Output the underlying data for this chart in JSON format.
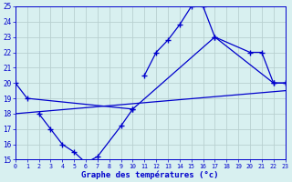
{
  "xlabel": "Graphe des températures (°c)",
  "bg_color": "#d8f0f0",
  "line_color": "#0000cc",
  "grid_color": "#b8d0d0",
  "xlim": [
    0,
    23
  ],
  "ylim": [
    15,
    25
  ],
  "yticks": [
    15,
    16,
    17,
    18,
    19,
    20,
    21,
    22,
    23,
    24,
    25
  ],
  "xticks": [
    0,
    1,
    2,
    3,
    4,
    5,
    6,
    7,
    8,
    9,
    10,
    11,
    12,
    13,
    14,
    15,
    16,
    17,
    18,
    19,
    20,
    21,
    22,
    23
  ],
  "line1": {
    "x": [
      0,
      1,
      10,
      17,
      22,
      23
    ],
    "y": [
      20.0,
      19.0,
      18.3,
      23.0,
      20.0,
      20.0
    ]
  },
  "line2": {
    "x": [
      2,
      3,
      4,
      5,
      6,
      7,
      9,
      10
    ],
    "y": [
      18.0,
      17.0,
      16.0,
      15.5,
      14.8,
      15.2,
      17.2,
      18.3
    ]
  },
  "line3": {
    "x": [
      11,
      12,
      13,
      14,
      15,
      16,
      17,
      20,
      21,
      22,
      23
    ],
    "y": [
      20.5,
      22.0,
      22.8,
      23.8,
      25.0,
      25.0,
      23.0,
      22.0,
      22.0,
      20.0,
      20.0
    ]
  },
  "line4": {
    "x": [
      0,
      23
    ],
    "y": [
      18.0,
      19.5
    ]
  }
}
